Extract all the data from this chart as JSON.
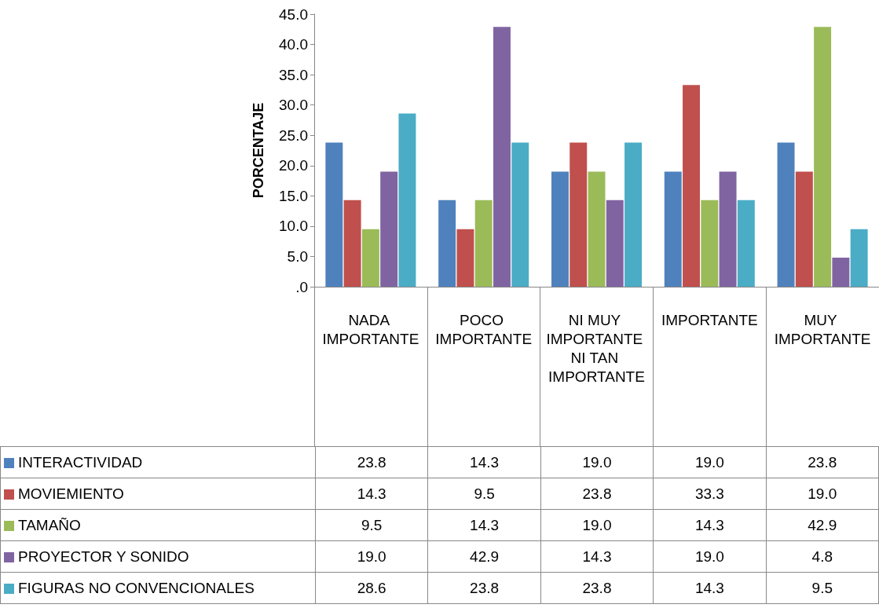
{
  "chart_data": {
    "type": "bar",
    "ylabel": "PORCENTAJE",
    "categories": [
      "NADA IMPORTANTE",
      "POCO IMPORTANTE",
      "NI MUY IMPORTANTE NI TAN IMPORTANTE",
      "IMPORTANTE",
      "MUY IMPORTANTE"
    ],
    "series": [
      {
        "name": "INTERACTIVIDAD",
        "color": "#4f81bd",
        "values": [
          23.8,
          14.3,
          19.0,
          19.0,
          23.8
        ],
        "value_labels": [
          "23.8",
          "14.3",
          "19.0",
          "19.0",
          "23.8"
        ]
      },
      {
        "name": "MOVIEMIENTO",
        "color": "#c0504d",
        "values": [
          14.3,
          9.5,
          23.8,
          33.3,
          19.0
        ],
        "value_labels": [
          "14.3",
          "9.5",
          "23.8",
          "33.3",
          "19.0"
        ]
      },
      {
        "name": "TAMAÑO",
        "color": "#9bbb59",
        "values": [
          9.5,
          14.3,
          19.0,
          14.3,
          42.9
        ],
        "value_labels": [
          "9.5",
          "14.3",
          "19.0",
          "14.3",
          "42.9"
        ]
      },
      {
        "name": "PROYECTOR Y SONIDO",
        "color": "#8064a2",
        "values": [
          19.0,
          42.9,
          14.3,
          19.0,
          4.8
        ],
        "value_labels": [
          "19.0",
          "42.9",
          "14.3",
          "19.0",
          "4.8"
        ]
      },
      {
        "name": "FIGURAS NO CONVENCIONALES",
        "color": "#4bacc6",
        "values": [
          28.6,
          23.8,
          23.8,
          14.3,
          9.5
        ],
        "value_labels": [
          "28.6",
          "23.8",
          "23.8",
          "14.3",
          "9.5"
        ]
      }
    ],
    "ylim": [
      0,
      45
    ],
    "yticks": [
      {
        "value": 0,
        "label": ".0"
      },
      {
        "value": 5,
        "label": "5.0"
      },
      {
        "value": 10,
        "label": "10.0"
      },
      {
        "value": 15,
        "label": "15.0"
      },
      {
        "value": 20,
        "label": "20.0"
      },
      {
        "value": 25,
        "label": "25.0"
      },
      {
        "value": 30,
        "label": "30.0"
      },
      {
        "value": 35,
        "label": "35.0"
      },
      {
        "value": 40,
        "label": "40.0"
      },
      {
        "value": 45,
        "label": "45.0"
      }
    ],
    "grid": false,
    "legend": "bottom left"
  }
}
